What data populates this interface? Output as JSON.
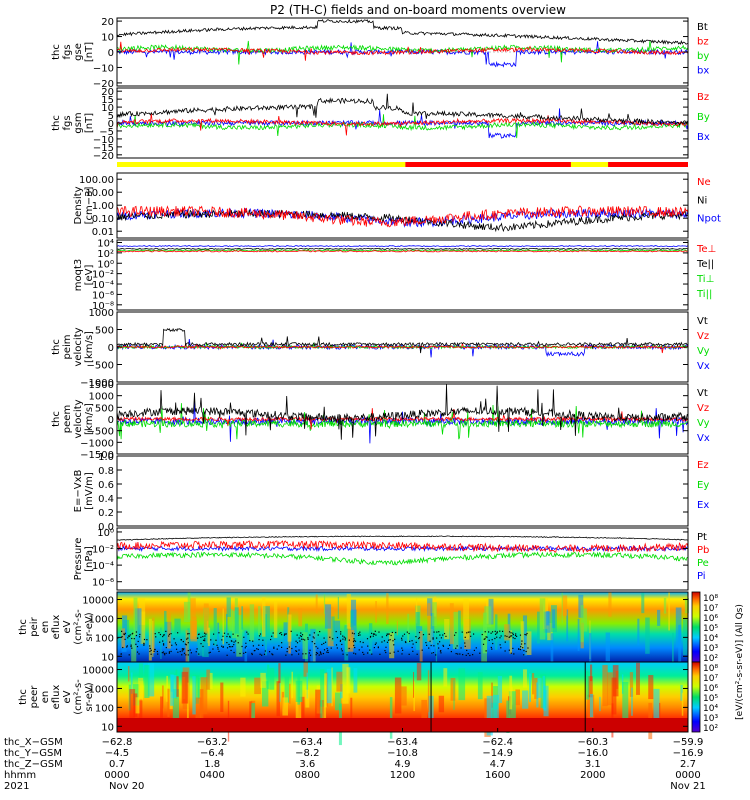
{
  "title": "P2 (TH-C) fields and on-board moments overview",
  "colors": {
    "black": "#000000",
    "red": "#ff0000",
    "green": "#00dd00",
    "blue": "#0000ff",
    "yellow": "#ffff00"
  },
  "mode_bar": {
    "segments": [
      {
        "from": 0,
        "to": 0.505,
        "color": "#ffff00"
      },
      {
        "from": 0.505,
        "to": 0.795,
        "color": "#ff0000"
      },
      {
        "from": 0.795,
        "to": 0.86,
        "color": "#ffff00"
      },
      {
        "from": 0.86,
        "to": 1.0,
        "color": "#ff0000"
      }
    ]
  },
  "panels": [
    {
      "id": "fgs-gse",
      "ylabel": [
        "thc",
        "fgs",
        "gse",
        "[nT]"
      ],
      "scale": "linear",
      "ticks": [
        {
          "v": 20,
          "t": "20"
        },
        {
          "v": 10,
          "t": "10"
        },
        {
          "v": 0,
          "t": "0"
        },
        {
          "v": -10,
          "t": "−10"
        },
        {
          "v": -20,
          "t": "−20"
        }
      ],
      "ylim": [
        -22,
        22
      ],
      "legend": [
        {
          "t": "Bt",
          "c": "#000000"
        },
        {
          "t": "bz",
          "c": "#ff0000"
        },
        {
          "t": "by",
          "c": "#00dd00"
        },
        {
          "t": "bx",
          "c": "#0000ff"
        }
      ]
    },
    {
      "id": "fgs-gsm",
      "ylabel": [
        "thc",
        "fgs",
        "gsm",
        "[nT]"
      ],
      "scale": "linear",
      "ticks": [
        {
          "v": 20,
          "t": "20"
        },
        {
          "v": 15,
          "t": "15"
        },
        {
          "v": 10,
          "t": "10"
        },
        {
          "v": 5,
          "t": "5"
        },
        {
          "v": 0,
          "t": "0"
        },
        {
          "v": -5,
          "t": "−5"
        },
        {
          "v": -10,
          "t": "−10"
        },
        {
          "v": -15,
          "t": "−15"
        },
        {
          "v": -20,
          "t": "−20"
        }
      ],
      "ylim": [
        -22,
        22
      ],
      "legend": [
        {
          "t": "Bz",
          "c": "#ff0000"
        },
        {
          "t": "By",
          "c": "#00dd00"
        },
        {
          "t": "Bx",
          "c": "#0000ff"
        }
      ]
    },
    {
      "id": "density",
      "ylabel": [
        "Density",
        "[cm−3]"
      ],
      "scale": "log",
      "ticks": [
        {
          "v": 100,
          "t": "100.00"
        },
        {
          "v": 10,
          "t": "10.00"
        },
        {
          "v": 1,
          "t": "1.00"
        },
        {
          "v": 0.1,
          "t": "0.10"
        },
        {
          "v": 0.01,
          "t": "0.01"
        }
      ],
      "ylim": [
        0.003,
        300
      ],
      "legend": [
        {
          "t": "Ne",
          "c": "#ff0000"
        },
        {
          "t": "Ni",
          "c": "#000000"
        },
        {
          "t": "Npot",
          "c": "#0000ff"
        }
      ]
    },
    {
      "id": "temperature",
      "ylabel": [
        "moqt3",
        "[eV]"
      ],
      "scale": "log",
      "ticks": [
        {
          "v": 10000,
          "t": "10⁴"
        },
        {
          "v": 100,
          "t": "10²"
        },
        {
          "v": 1,
          "t": "10⁰"
        },
        {
          "v": 0.01,
          "t": "10⁻²"
        },
        {
          "v": 0.0001,
          "t": "10⁻⁴"
        },
        {
          "v": 1e-06,
          "t": "10⁻⁶"
        },
        {
          "v": 1e-08,
          "t": "10⁻⁸"
        }
      ],
      "ylim": [
        1e-09,
        30000
      ],
      "legend": [
        {
          "t": "Te⊥",
          "c": "#ff0000"
        },
        {
          "t": "Te||",
          "c": "#000000"
        },
        {
          "t": "Ti⊥",
          "c": "#00dd00"
        },
        {
          "t": "Ti||",
          "c": "#00dd00"
        }
      ]
    },
    {
      "id": "peim-velocity",
      "ylabel": [
        "thc",
        "peim",
        "velocity",
        "[km/s]"
      ],
      "scale": "linear",
      "ticks": [
        {
          "v": 1000,
          "t": "1000"
        },
        {
          "v": 500,
          "t": "500"
        },
        {
          "v": 0,
          "t": "0"
        },
        {
          "v": -500,
          "t": "−500"
        },
        {
          "v": -1000,
          "t": "−1000"
        }
      ],
      "ylim": [
        -1000,
        1000
      ],
      "legend": [
        {
          "t": "Vt",
          "c": "#000000"
        },
        {
          "t": "Vz",
          "c": "#ff0000"
        },
        {
          "t": "Vy",
          "c": "#00dd00"
        },
        {
          "t": "Vx",
          "c": "#0000ff"
        }
      ]
    },
    {
      "id": "peem-velocity",
      "ylabel": [
        "thc",
        "peem",
        "velocity",
        "[km/s]"
      ],
      "scale": "linear",
      "ticks": [
        {
          "v": 1500,
          "t": "1500"
        },
        {
          "v": 1000,
          "t": "1000"
        },
        {
          "v": 500,
          "t": "500"
        },
        {
          "v": 0,
          "t": "0"
        },
        {
          "v": -500,
          "t": "−500"
        },
        {
          "v": -1000,
          "t": "−1000"
        },
        {
          "v": -1500,
          "t": "−1500"
        }
      ],
      "ylim": [
        -1500,
        1500
      ],
      "legend": [
        {
          "t": "Vt",
          "c": "#000000"
        },
        {
          "t": "Vz",
          "c": "#ff0000"
        },
        {
          "t": "Vy",
          "c": "#00dd00"
        },
        {
          "t": "Vx",
          "c": "#0000ff"
        }
      ]
    },
    {
      "id": "efield",
      "ylabel": [
        "E=−VxB",
        "[mV/m]"
      ],
      "scale": "linear",
      "ticks": [
        {
          "v": 1.0,
          "t": "1.0"
        },
        {
          "v": 0.8,
          "t": "0.8"
        },
        {
          "v": 0.6,
          "t": "0.6"
        },
        {
          "v": 0.4,
          "t": "0.4"
        },
        {
          "v": 0.2,
          "t": "0.2"
        },
        {
          "v": 0.0,
          "t": "0.0"
        }
      ],
      "ylim": [
        0,
        1
      ],
      "legend": [
        {
          "t": "Ez",
          "c": "#ff0000"
        },
        {
          "t": "Ey",
          "c": "#00dd00"
        },
        {
          "t": "Ex",
          "c": "#0000ff"
        }
      ]
    },
    {
      "id": "pressure",
      "ylabel": [
        "Pressure",
        "[nPa]"
      ],
      "scale": "log",
      "ticks": [
        {
          "v": 1,
          "t": "10⁰"
        },
        {
          "v": 0.01,
          "t": "10⁻²"
        },
        {
          "v": 0.0001,
          "t": "10⁻⁴"
        },
        {
          "v": 1e-06,
          "t": "10⁻⁶"
        }
      ],
      "ylim": [
        1e-07,
        3
      ],
      "legend": [
        {
          "t": "Pt",
          "c": "#000000"
        },
        {
          "t": "Pb",
          "c": "#ff0000"
        },
        {
          "t": "Pe",
          "c": "#00dd00"
        },
        {
          "t": "Pi",
          "c": "#0000ff"
        }
      ]
    },
    {
      "id": "peir-spec",
      "ylabel": [
        "thc",
        "peir",
        "en",
        "eflux",
        "eV",
        "(cm²-s-",
        "sr-eV)"
      ],
      "scale": "log",
      "ticks": [
        {
          "v": 10000,
          "t": "10000"
        },
        {
          "v": 1000,
          "t": "1000"
        },
        {
          "v": 100,
          "t": "100"
        },
        {
          "v": 10,
          "t": "10"
        }
      ],
      "ylim": [
        5,
        25000
      ],
      "legend": []
    },
    {
      "id": "peer-spec",
      "ylabel": [
        "thc",
        "peer",
        "en",
        "eflux",
        "eV",
        "(cm²-s-",
        "sr-eV)"
      ],
      "scale": "log",
      "ticks": [
        {
          "v": 10000,
          "t": "10000"
        },
        {
          "v": 1000,
          "t": "1000"
        },
        {
          "v": 100,
          "t": "100"
        },
        {
          "v": 10,
          "t": "10"
        }
      ],
      "ylim": [
        5,
        25000
      ],
      "legend": []
    }
  ],
  "colorbar": {
    "label": "[eV/(cm²-s-sr-eV)] (All Qs)",
    "ticks_upper": [
      "10⁸",
      "10⁷",
      "10⁶",
      "10⁵",
      "10⁴",
      "10³",
      "10²"
    ],
    "ticks_lower": [
      "10⁸",
      "10⁷",
      "10⁶",
      "10⁵",
      "10⁴",
      "10³",
      "10²"
    ]
  },
  "xaxis": {
    "rows": [
      {
        "label": "thc_X−GSM",
        "values": [
          "−62.8",
          "−63.2",
          "−63.4",
          "−63.4",
          "−62.4",
          "−60.3",
          "−59.9"
        ]
      },
      {
        "label": "thc_Y−GSM",
        "values": [
          "−4.5",
          "−6.4",
          "−8.2",
          "−10.8",
          "−14.9",
          "−16.0",
          "−16.9"
        ]
      },
      {
        "label": "thc_Z−GSM",
        "values": [
          "0.7",
          "1.8",
          "3.6",
          "4.9",
          "4.7",
          "3.1",
          "2.7"
        ]
      },
      {
        "label": "hhmm",
        "values": [
          "0000",
          "0400",
          "0800",
          "1200",
          "1600",
          "2000",
          "0000"
        ]
      },
      {
        "label": "2021",
        "values": [
          "Nov 20",
          "",
          "",
          "",
          "",
          "",
          "Nov 21"
        ]
      }
    ]
  },
  "chart_data": {
    "type": "line",
    "title": "P2 (TH-C) fields and on-board moments overview",
    "x_hours": [
      0,
      2,
      4,
      6,
      8,
      10,
      12,
      14,
      16,
      18,
      20,
      22,
      24
    ],
    "series": [
      {
        "name": "Bt",
        "panel": "fgs-gse",
        "values": [
          15,
          16,
          10,
          14,
          16,
          18,
          14,
          12,
          10,
          9,
          8,
          5,
          9
        ]
      },
      {
        "name": "bz",
        "panel": "fgs-gse",
        "values": [
          2,
          1,
          1,
          0,
          1,
          0,
          1,
          -1,
          -3,
          0,
          1,
          0,
          1
        ]
      },
      {
        "name": "by",
        "panel": "fgs-gse",
        "values": [
          3,
          2,
          3,
          3,
          2,
          3,
          2,
          3,
          -5,
          3,
          2,
          3,
          2
        ]
      },
      {
        "name": "bx",
        "panel": "fgs-gse",
        "values": [
          1,
          0,
          1,
          1,
          0,
          1,
          0,
          1,
          -8,
          0,
          0,
          -5,
          0
        ]
      },
      {
        "name": "Ne",
        "panel": "density",
        "values": [
          0.2,
          0.4,
          0.3,
          0.1,
          0.2,
          0.2,
          0.1,
          0.1,
          0.2,
          0.05,
          0.05,
          0.1,
          0.2
        ]
      },
      {
        "name": "Pt",
        "panel": "pressure",
        "values": [
          0.1,
          0.1,
          0.2,
          0.3,
          0.4,
          0.5,
          0.6,
          0.6,
          0.5,
          0.4,
          0.3,
          0.2,
          0.2
        ]
      }
    ]
  }
}
